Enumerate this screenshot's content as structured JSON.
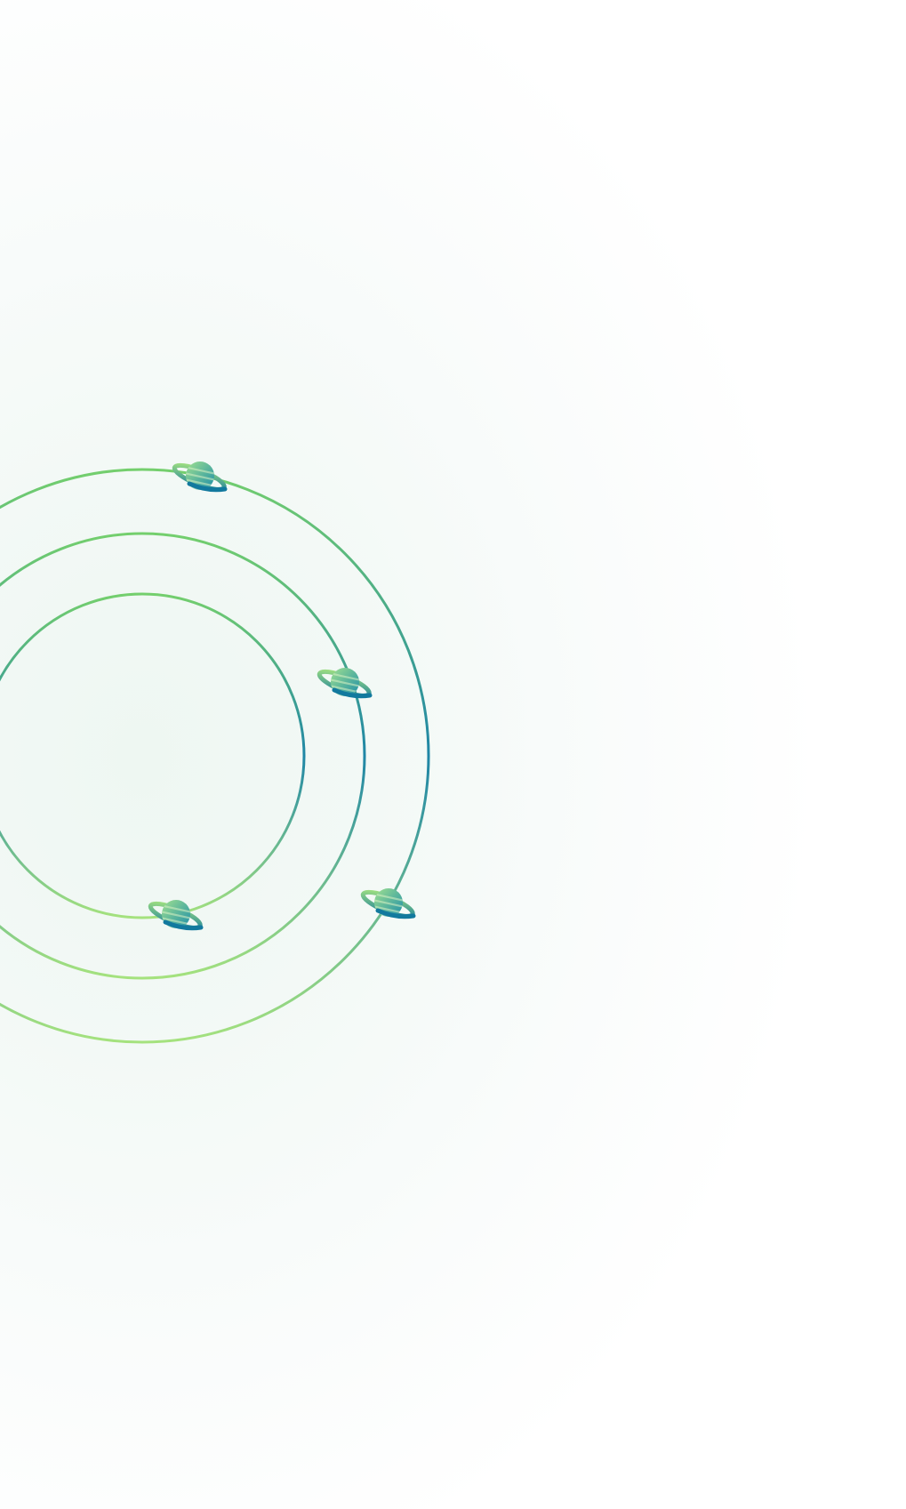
{
  "scene": {
    "background_color": "#ffffff",
    "glow_color": "#eef7f2",
    "orbit_gradient_start": "#b3ea8c",
    "orbit_gradient_mid": "#74cf6d",
    "orbit_gradient_end": "#1f86a6",
    "planet_colors": {
      "ring_light": "#a7e57f",
      "ring_dark": "#12799e",
      "body_top": "#8fdc8a",
      "body_bottom": "#1e8ea8",
      "stripe": "#d9f3c4"
    },
    "orbits": [
      {
        "name": "inner-orbit",
        "planet_count": 1
      },
      {
        "name": "middle-orbit",
        "planet_count": 1
      },
      {
        "name": "outer-orbit",
        "planet_count": 2
      }
    ],
    "icons": [
      "planet-icon",
      "planet-icon",
      "planet-icon",
      "planet-icon"
    ]
  }
}
